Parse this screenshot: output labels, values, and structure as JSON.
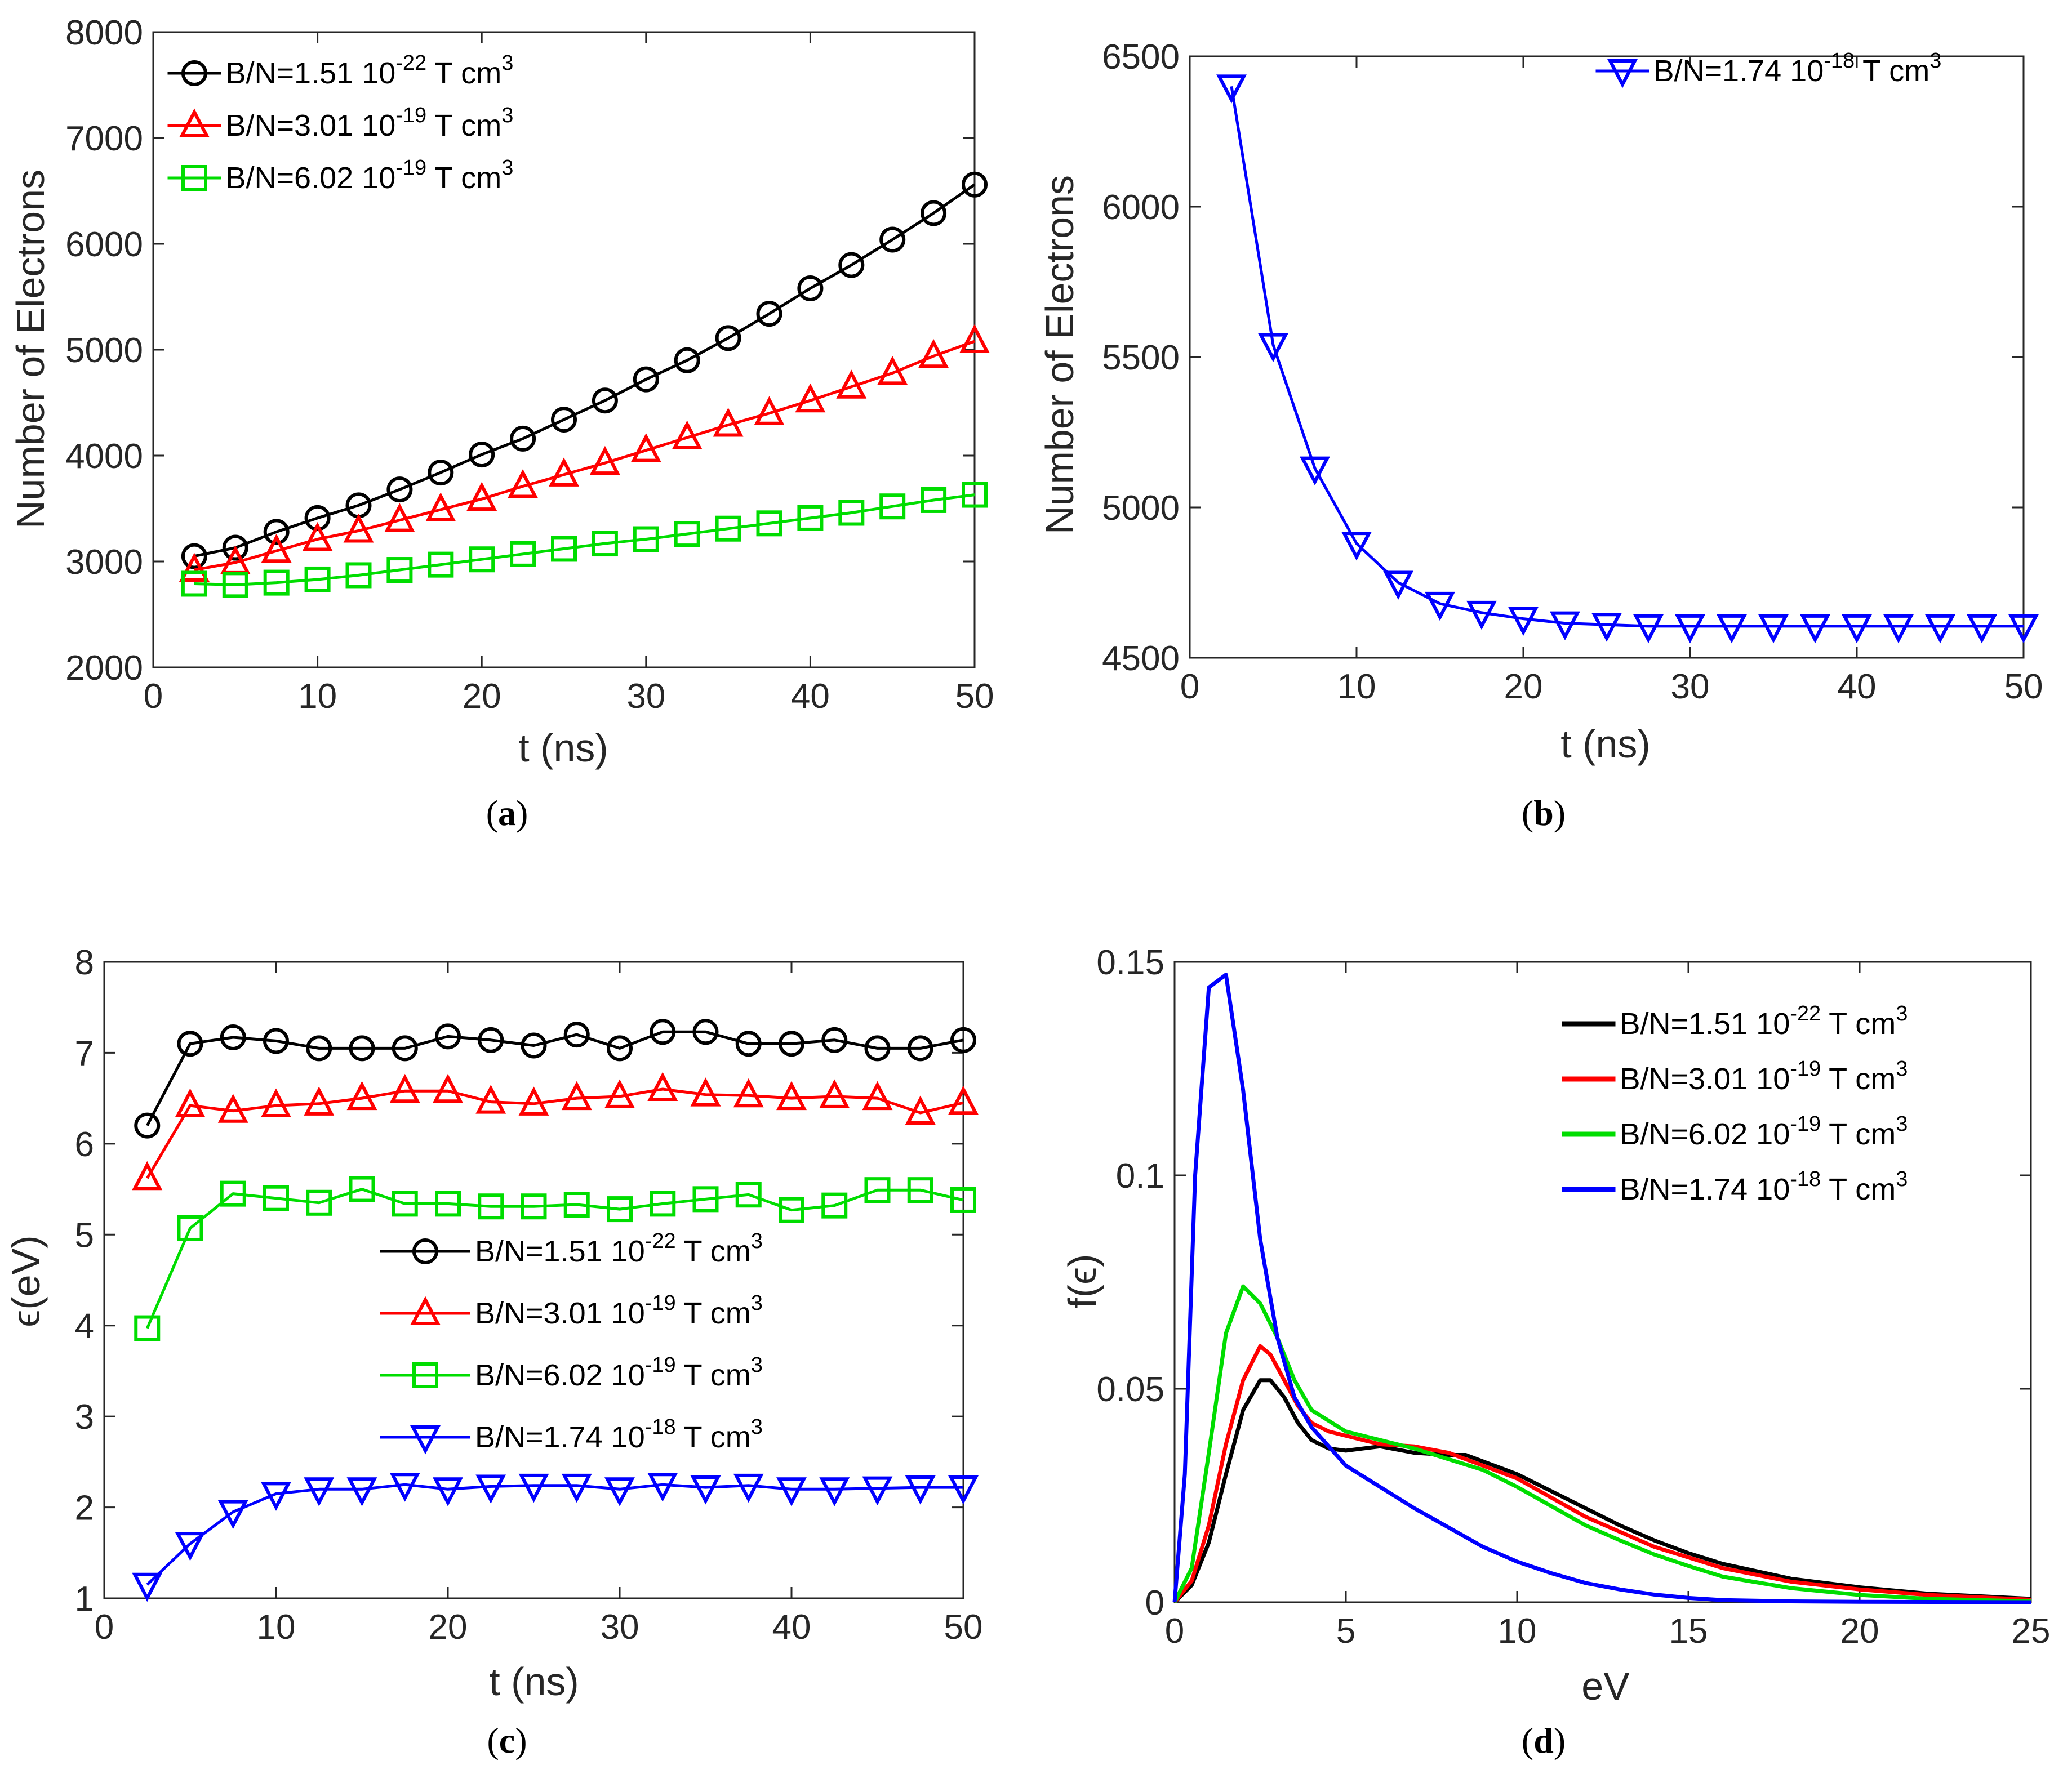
{
  "chart_data": [
    {
      "id": "a",
      "type": "line",
      "caption_letter": "a",
      "xlabel": "t (ns)",
      "ylabel": "Number of Electrons",
      "xlim": [
        0,
        50
      ],
      "ylim": [
        2000,
        8000
      ],
      "xticks": [
        0,
        10,
        20,
        30,
        40,
        50
      ],
      "yticks": [
        2000,
        3000,
        4000,
        5000,
        6000,
        7000,
        8000
      ],
      "legend_position": "top-left",
      "x": [
        2.5,
        5,
        7.5,
        10,
        12.5,
        15,
        17.5,
        20,
        22.5,
        25,
        27.5,
        30,
        32.5,
        35,
        37.5,
        40,
        42.5,
        45,
        47.5,
        50
      ],
      "series": [
        {
          "name": "B/N=1.51 10",
          "exp": "-22",
          "unit": " T cm",
          "unit_exp": "3",
          "color": "#000000",
          "marker": "circle",
          "values": [
            3050,
            3130,
            3280,
            3410,
            3530,
            3680,
            3840,
            4010,
            4160,
            4340,
            4520,
            4720,
            4900,
            5110,
            5340,
            5580,
            5800,
            6040,
            6290,
            6560
          ]
        },
        {
          "name": "B/N=3.01 10",
          "exp": "-19",
          "unit": " T cm",
          "unit_exp": "3",
          "color": "#ff0000",
          "marker": "triangle-up",
          "values": [
            2920,
            2990,
            3100,
            3210,
            3290,
            3390,
            3490,
            3590,
            3710,
            3820,
            3930,
            4050,
            4170,
            4290,
            4400,
            4520,
            4650,
            4780,
            4940,
            5080
          ]
        },
        {
          "name": "B/N=6.02 10",
          "exp": "-19",
          "unit": " T cm",
          "unit_exp": "3",
          "color": "#00dd00",
          "marker": "square",
          "values": [
            2790,
            2780,
            2800,
            2830,
            2870,
            2920,
            2970,
            3020,
            3070,
            3120,
            3170,
            3210,
            3260,
            3310,
            3360,
            3410,
            3460,
            3520,
            3580,
            3630
          ]
        }
      ]
    },
    {
      "id": "b",
      "type": "line",
      "caption_letter": "b",
      "xlabel": "t (ns)",
      "ylabel": "Number of Electrons",
      "xlim": [
        0,
        50
      ],
      "ylim": [
        4500,
        6500
      ],
      "xticks": [
        0,
        10,
        20,
        30,
        40,
        50
      ],
      "yticks": [
        4500,
        5000,
        5500,
        6000,
        6500
      ],
      "legend_position": "top-right",
      "x": [
        2.5,
        5,
        7.5,
        10,
        12.5,
        15,
        17.5,
        20,
        22.5,
        25,
        27.5,
        30,
        32.5,
        35,
        37.5,
        40,
        42.5,
        45,
        47.5,
        50
      ],
      "series": [
        {
          "name": "B/N=1.74 10",
          "exp": "-18",
          "unit": " T cm",
          "unit_exp": "3",
          "color": "#0000ff",
          "marker": "triangle-down",
          "values": [
            6400,
            5540,
            5130,
            4880,
            4750,
            4680,
            4650,
            4630,
            4615,
            4610,
            4605,
            4605,
            4605,
            4605,
            4605,
            4605,
            4605,
            4605,
            4605,
            4605
          ]
        }
      ]
    },
    {
      "id": "c",
      "type": "line",
      "caption_letter": "c",
      "xlabel": "t (ns)",
      "ylabel": "ϵ(eV)",
      "xlim": [
        0,
        50
      ],
      "ylim": [
        1,
        8
      ],
      "xticks": [
        0,
        10,
        20,
        30,
        40,
        50
      ],
      "yticks": [
        1,
        2,
        3,
        4,
        5,
        6,
        7,
        8
      ],
      "legend_position": "center-right",
      "x": [
        2.5,
        5,
        7.5,
        10,
        12.5,
        15,
        17.5,
        20,
        22.5,
        25,
        27.5,
        30,
        32.5,
        35,
        37.5,
        40,
        42.5,
        45,
        47.5,
        50
      ],
      "series": [
        {
          "name": "B/N=1.51 10",
          "exp": "-22",
          "unit": " T cm",
          "unit_exp": "3",
          "color": "#000000",
          "marker": "circle",
          "values": [
            6.2,
            7.1,
            7.17,
            7.13,
            7.05,
            7.05,
            7.05,
            7.18,
            7.14,
            7.08,
            7.2,
            7.05,
            7.23,
            7.23,
            7.1,
            7.1,
            7.14,
            7.05,
            7.05,
            7.14
          ]
        },
        {
          "name": "B/N=3.01 10",
          "exp": "-19",
          "unit": " T cm",
          "unit_exp": "3",
          "color": "#ff0000",
          "marker": "triangle-up",
          "values": [
            5.62,
            6.42,
            6.36,
            6.42,
            6.44,
            6.5,
            6.58,
            6.58,
            6.46,
            6.44,
            6.5,
            6.52,
            6.6,
            6.54,
            6.53,
            6.5,
            6.52,
            6.5,
            6.34,
            6.45
          ]
        },
        {
          "name": "B/N=6.02 10",
          "exp": "-19",
          "unit": " T cm",
          "unit_exp": "3",
          "color": "#00dd00",
          "marker": "square",
          "values": [
            3.97,
            5.07,
            5.45,
            5.4,
            5.35,
            5.5,
            5.34,
            5.34,
            5.31,
            5.31,
            5.33,
            5.28,
            5.34,
            5.39,
            5.44,
            5.27,
            5.32,
            5.49,
            5.49,
            5.38
          ]
        },
        {
          "name": "B/N=1.74 10",
          "exp": "-18",
          "unit": " T cm",
          "unit_exp": "3",
          "color": "#0000ff",
          "marker": "triangle-down",
          "values": [
            1.15,
            1.6,
            1.95,
            2.15,
            2.2,
            2.2,
            2.25,
            2.2,
            2.23,
            2.24,
            2.24,
            2.2,
            2.25,
            2.22,
            2.24,
            2.2,
            2.2,
            2.21,
            2.22,
            2.22
          ]
        }
      ]
    },
    {
      "id": "d",
      "type": "line",
      "caption_letter": "d",
      "xlabel": "eV",
      "ylabel": "f(ϵ)",
      "xlim": [
        0,
        25
      ],
      "ylim": [
        0,
        0.15
      ],
      "xticks": [
        0,
        5,
        10,
        15,
        20,
        25
      ],
      "yticks": [
        0,
        0.05,
        0.1,
        0.15
      ],
      "ytick_labels": [
        "0",
        "0.05",
        "0.1",
        "0.15"
      ],
      "legend_position": "top-right",
      "series": [
        {
          "name": "B/N=1.51 10",
          "exp": "-22",
          "unit": " T cm",
          "unit_exp": "3",
          "color": "#000000",
          "x": [
            0,
            0.5,
            1,
            1.5,
            2,
            2.5,
            2.8,
            3.2,
            3.6,
            4,
            4.5,
            5,
            6,
            7,
            8,
            8.5,
            9,
            10,
            11,
            12,
            13,
            14,
            15,
            16,
            18,
            20,
            22,
            25
          ],
          "y": [
            0,
            0.004,
            0.014,
            0.03,
            0.045,
            0.052,
            0.052,
            0.048,
            0.042,
            0.038,
            0.036,
            0.0355,
            0.0365,
            0.035,
            0.0345,
            0.0345,
            0.033,
            0.03,
            0.026,
            0.022,
            0.018,
            0.0145,
            0.0115,
            0.009,
            0.0055,
            0.0035,
            0.002,
            0.0008
          ]
        },
        {
          "name": "B/N=3.01 10",
          "exp": "-19",
          "unit": " T cm",
          "unit_exp": "3",
          "color": "#ff0000",
          "x": [
            0,
            0.5,
            1,
            1.5,
            2,
            2.5,
            2.8,
            3.2,
            3.6,
            4,
            4.5,
            5,
            6,
            7,
            8,
            9,
            10,
            11,
            12,
            13,
            14,
            15,
            16,
            18,
            20,
            22,
            25
          ],
          "y": [
            0,
            0.005,
            0.018,
            0.037,
            0.052,
            0.06,
            0.058,
            0.052,
            0.046,
            0.042,
            0.04,
            0.039,
            0.037,
            0.0365,
            0.035,
            0.032,
            0.029,
            0.0245,
            0.02,
            0.0165,
            0.013,
            0.0105,
            0.008,
            0.0048,
            0.003,
            0.0017,
            0.0006
          ]
        },
        {
          "name": "B/N=6.02 10",
          "exp": "-19",
          "unit": " T cm",
          "unit_exp": "3",
          "color": "#00dd00",
          "x": [
            0,
            0.5,
            1,
            1.5,
            2,
            2.5,
            3,
            3.5,
            4,
            5,
            6,
            7,
            8,
            9,
            10,
            11,
            12,
            13,
            14,
            15,
            16,
            18,
            20,
            22,
            25
          ],
          "y": [
            0,
            0.008,
            0.035,
            0.063,
            0.074,
            0.07,
            0.062,
            0.052,
            0.045,
            0.04,
            0.038,
            0.036,
            0.0335,
            0.031,
            0.027,
            0.0225,
            0.018,
            0.0145,
            0.0112,
            0.0085,
            0.006,
            0.0033,
            0.0017,
            0.0008,
            0.0002
          ]
        },
        {
          "name": "B/N=1.74 10",
          "exp": "-18",
          "unit": " T cm",
          "unit_exp": "3",
          "color": "#0000ff",
          "x": [
            0,
            0.3,
            0.6,
            1,
            1.5,
            2,
            2.5,
            3,
            3.5,
            4,
            5,
            6,
            7,
            8,
            9,
            10,
            11,
            12,
            13,
            14,
            15,
            16,
            18,
            20,
            25
          ],
          "y": [
            0,
            0.03,
            0.1,
            0.144,
            0.147,
            0.12,
            0.085,
            0.062,
            0.048,
            0.041,
            0.032,
            0.027,
            0.022,
            0.0175,
            0.013,
            0.0095,
            0.0068,
            0.0045,
            0.003,
            0.0018,
            0.001,
            0.0005,
            0.0002,
            0.0001,
            0
          ]
        }
      ]
    }
  ]
}
